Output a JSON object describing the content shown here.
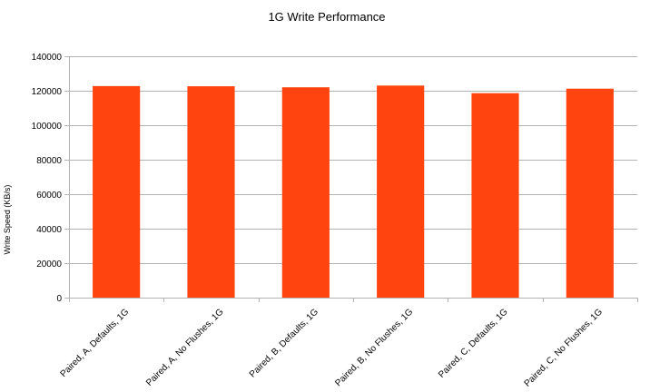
{
  "chart_data": {
    "type": "bar",
    "title": "1G Write Performance",
    "xlabel": "",
    "ylabel": "Write Speed (KB/s)",
    "categories": [
      "Paired, A, Defaults, 1G",
      "Paired, A, No Flushes, 1G",
      "Paired, B, Defaults, 1G",
      "Paired, B, No Flushes, 1G",
      "Paired, C, Defaults, 1G",
      "Paired, C, No Flushes, 1G"
    ],
    "values": [
      122700,
      122600,
      122000,
      123000,
      118600,
      121200
    ],
    "ylim": [
      0,
      140000
    ],
    "yticks": [
      0,
      20000,
      40000,
      60000,
      80000,
      100000,
      120000,
      140000
    ],
    "ytick_labels": [
      "0",
      "20000",
      "40000",
      "60000",
      "80000",
      "100000",
      "120000",
      "140000"
    ],
    "grid": true,
    "legend": "none",
    "colors": {
      "bar": "#ff4410",
      "grid": "#b3b3b3",
      "axis": "#b3b3b3"
    }
  }
}
